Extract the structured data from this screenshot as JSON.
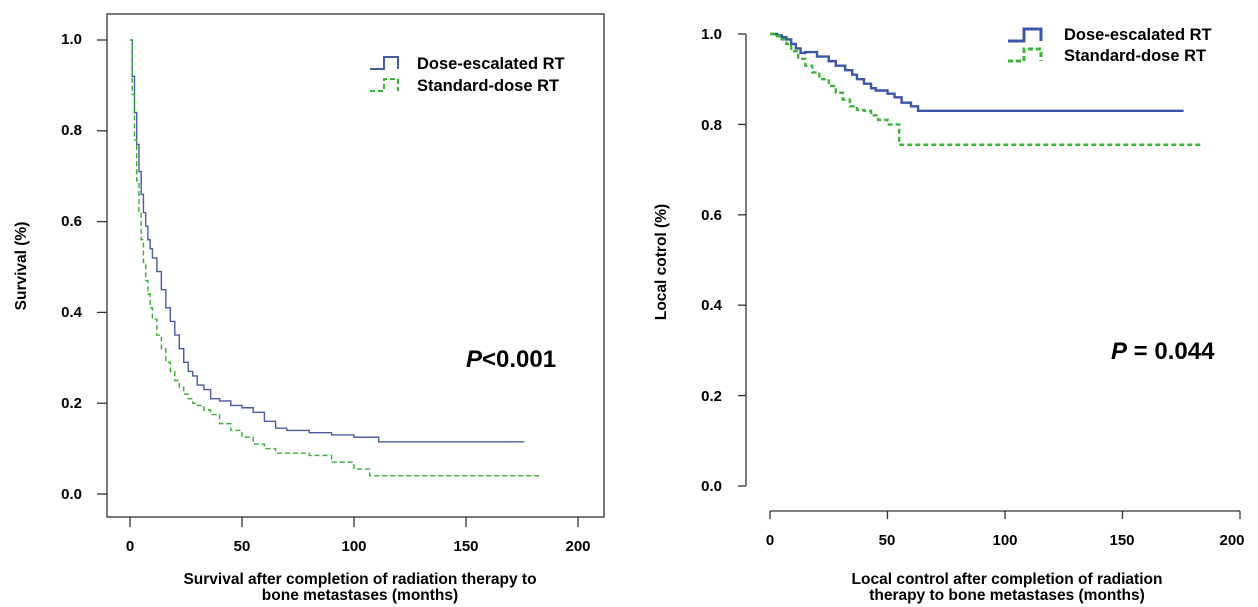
{
  "chart_data": [
    {
      "type": "line",
      "subtype": "kaplan-meier",
      "title": "",
      "xlabel": [
        "Survival after completion of radiation therapy to",
        "bone metastases (months)"
      ],
      "ylabel": "Survival (%)",
      "xlim": [
        -10,
        205
      ],
      "ylim": [
        -0.05,
        1.05
      ],
      "xticks": [
        0,
        50,
        100,
        150,
        200
      ],
      "yticks": [
        0.0,
        0.2,
        0.4,
        0.6,
        0.8,
        1.0
      ],
      "xtick_labels": [
        "0",
        "50",
        "100",
        "150",
        "200"
      ],
      "ytick_labels": [
        "0.0",
        "0.2",
        "0.4",
        "0.6",
        "0.8",
        "1.0"
      ],
      "frame": "box",
      "grid": false,
      "legend_position": "top-right",
      "annotation": {
        "p_italic": "P",
        "rest": "<0.001"
      },
      "series": [
        {
          "name": "Dose-escalated RT",
          "color": "#4a5ba3",
          "dash": "solid",
          "x": [
            0,
            1,
            2,
            3,
            4,
            5,
            6,
            7,
            8,
            9,
            10,
            12,
            14,
            16,
            18,
            20,
            22,
            24,
            26,
            28,
            30,
            33,
            36,
            40,
            45,
            50,
            55,
            60,
            65,
            70,
            80,
            90,
            100,
            110,
            111,
            120,
            150,
            176
          ],
          "y": [
            1.0,
            0.92,
            0.84,
            0.77,
            0.71,
            0.66,
            0.62,
            0.59,
            0.56,
            0.54,
            0.52,
            0.49,
            0.45,
            0.41,
            0.38,
            0.35,
            0.32,
            0.29,
            0.27,
            0.26,
            0.24,
            0.23,
            0.21,
            0.205,
            0.195,
            0.19,
            0.18,
            0.16,
            0.145,
            0.14,
            0.135,
            0.13,
            0.125,
            0.125,
            0.115,
            0.115,
            0.115,
            0.115
          ]
        },
        {
          "name": "Standard-dose RT",
          "color": "#35b030",
          "dash": "dashed",
          "x": [
            0,
            1,
            2,
            3,
            4,
            5,
            6,
            7,
            8,
            9,
            10,
            12,
            14,
            16,
            18,
            20,
            22,
            24,
            26,
            28,
            30,
            33,
            36,
            40,
            45,
            50,
            55,
            60,
            65,
            70,
            80,
            90,
            100,
            107,
            110,
            120,
            150,
            184
          ],
          "y": [
            1.0,
            0.88,
            0.78,
            0.69,
            0.62,
            0.56,
            0.51,
            0.47,
            0.44,
            0.41,
            0.385,
            0.35,
            0.32,
            0.29,
            0.27,
            0.25,
            0.235,
            0.22,
            0.21,
            0.2,
            0.195,
            0.185,
            0.175,
            0.155,
            0.14,
            0.125,
            0.11,
            0.1,
            0.09,
            0.09,
            0.085,
            0.07,
            0.055,
            0.04,
            0.04,
            0.04,
            0.04,
            0.04
          ]
        }
      ]
    },
    {
      "type": "line",
      "subtype": "kaplan-meier",
      "title": "",
      "xlabel": [
        "Local control after completion of radiation",
        "therapy to bone metastases (months)"
      ],
      "ylabel": "Local cotrol (%)",
      "xlim": [
        -10,
        205
      ],
      "ylim": [
        -0.05,
        1.05
      ],
      "xticks": [
        0,
        50,
        100,
        150,
        200
      ],
      "yticks": [
        0.0,
        0.2,
        0.4,
        0.6,
        0.8,
        1.0
      ],
      "xtick_labels": [
        "0",
        "50",
        "100",
        "150",
        "200"
      ],
      "ytick_labels": [
        "0.0",
        "0.2",
        "0.4",
        "0.6",
        "0.8",
        "1.0"
      ],
      "frame": "open",
      "grid": false,
      "legend_position": "top-right",
      "annotation": {
        "p_italic": "P",
        "rest": " = 0.044"
      },
      "series": [
        {
          "name": "Dose-escalated RT",
          "color": "#3b56a8",
          "dash": "solid",
          "x": [
            0,
            3,
            5,
            7,
            9,
            11,
            13,
            15,
            20,
            25,
            28,
            32,
            35,
            37,
            40,
            43,
            45,
            50,
            53,
            56,
            60,
            63,
            100,
            150,
            176
          ],
          "y": [
            1.0,
            0.997,
            0.993,
            0.988,
            0.978,
            0.968,
            0.958,
            0.96,
            0.95,
            0.94,
            0.93,
            0.92,
            0.91,
            0.9,
            0.89,
            0.88,
            0.875,
            0.868,
            0.86,
            0.848,
            0.84,
            0.83,
            0.83,
            0.83,
            0.83
          ]
        },
        {
          "name": "Standard-dose RT",
          "color": "#3db53a",
          "dash": "dashed",
          "x": [
            0,
            3,
            5,
            7,
            9,
            12,
            15,
            18,
            21,
            25,
            28,
            31,
            34,
            37,
            40,
            43,
            46,
            50,
            52,
            55,
            58,
            100,
            150,
            184
          ],
          "y": [
            1.0,
            0.995,
            0.988,
            0.978,
            0.962,
            0.945,
            0.93,
            0.915,
            0.9,
            0.885,
            0.87,
            0.855,
            0.84,
            0.832,
            0.83,
            0.82,
            0.81,
            0.8,
            0.8,
            0.755,
            0.755,
            0.755,
            0.755,
            0.755
          ]
        }
      ]
    }
  ]
}
